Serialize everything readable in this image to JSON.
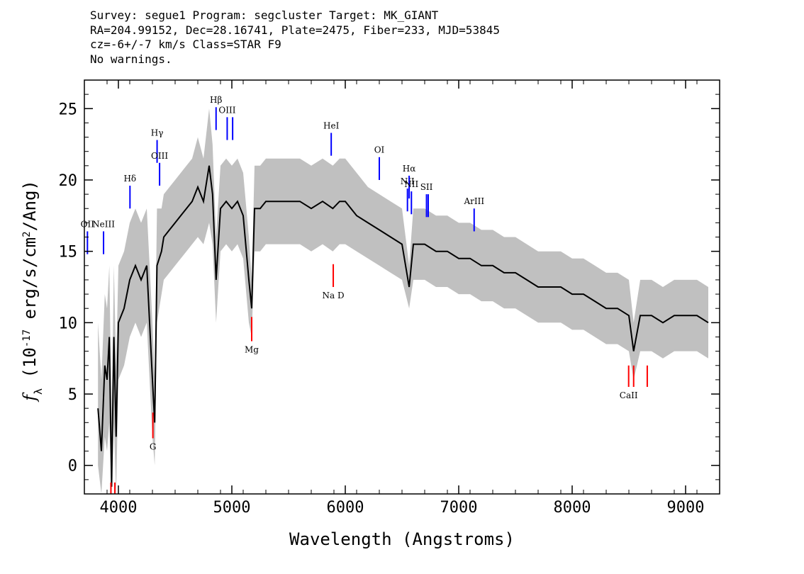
{
  "header": {
    "line1": "Survey: segue1 Program: segcluster Target: MK_GIANT",
    "line2": "RA=204.99152, Dec=28.16741, Plate=2475, Fiber=233, MJD=53845",
    "line3": "cz=-6+/-7 km/s Class=STAR F9",
    "line4": "No warnings."
  },
  "chart_data": {
    "type": "line",
    "title": "",
    "xlabel": "Wavelength (Angstroms)",
    "ylabel": "f_λ (10^-17 erg/s/cm^2/Ang)",
    "xlim": [
      3700,
      9300
    ],
    "ylim": [
      -2,
      27
    ],
    "xticks": [
      4000,
      5000,
      6000,
      7000,
      8000,
      9000
    ],
    "yticks": [
      0,
      5,
      10,
      15,
      20,
      25
    ],
    "grid": false,
    "series": [
      {
        "name": "",
        "color": "#000000",
        "x": [
          3820,
          3850,
          3880,
          3900,
          3920,
          3940,
          3960,
          3980,
          4000,
          4050,
          4100,
          4150,
          4200,
          4250,
          4300,
          4320,
          4340,
          4380,
          4400,
          4450,
          4500,
          4550,
          4600,
          4650,
          4700,
          4750,
          4800,
          4830,
          4861,
          4900,
          4950,
          5000,
          5050,
          5100,
          5150,
          5175,
          5200,
          5250,
          5300,
          5400,
          5500,
          5600,
          5700,
          5800,
          5890,
          5950,
          6000,
          6100,
          6200,
          6300,
          6400,
          6500,
          6563,
          6600,
          6700,
          6800,
          6900,
          7000,
          7100,
          7200,
          7300,
          7400,
          7500,
          7600,
          7700,
          7800,
          7900,
          8000,
          8100,
          8200,
          8300,
          8400,
          8500,
          8542,
          8600,
          8700,
          8800,
          8900,
          9000,
          9100,
          9200
        ],
        "values": [
          4,
          1,
          7,
          6,
          9,
          -1.5,
          9,
          2,
          10,
          11,
          13,
          14,
          13,
          14,
          6,
          3,
          14,
          15,
          16,
          16.5,
          17,
          17.5,
          18,
          18.5,
          19.5,
          18.5,
          21,
          19,
          13,
          18,
          18.5,
          18,
          18.5,
          17.5,
          13,
          11,
          18,
          18,
          18.5,
          18.5,
          18.5,
          18.5,
          18,
          18.5,
          18,
          18.5,
          18.5,
          17.5,
          17,
          16.5,
          16,
          15.5,
          12.5,
          15.5,
          15.5,
          15,
          15,
          14.5,
          14.5,
          14,
          14,
          13.5,
          13.5,
          13,
          12.5,
          12.5,
          12.5,
          12,
          12,
          11.5,
          11,
          11,
          10.5,
          8,
          10.5,
          10.5,
          10,
          10.5,
          10.5,
          10.5,
          10
        ]
      }
    ],
    "error_band": {
      "color": "#c0c0c0",
      "lower": [
        0,
        -2,
        2,
        1,
        3,
        -2,
        3,
        -2,
        6,
        7,
        9,
        10,
        9,
        10,
        2,
        0,
        10,
        12,
        13,
        13.5,
        14,
        14.5,
        15,
        15.5,
        16,
        15.5,
        17,
        15.5,
        10,
        15,
        15.5,
        15,
        15.5,
        14.5,
        10,
        9,
        15,
        15,
        15.5,
        15.5,
        15.5,
        15.5,
        15,
        15.5,
        15,
        15.5,
        15.5,
        15,
        14.5,
        14,
        13.5,
        13,
        11,
        13,
        13,
        12.5,
        12.5,
        12,
        12,
        11.5,
        11.5,
        11,
        11,
        10.5,
        10,
        10,
        10,
        9.5,
        9.5,
        9,
        8.5,
        8.5,
        8,
        6,
        8,
        8,
        7.5,
        8,
        8,
        8,
        7.5
      ],
      "upper": [
        10,
        6,
        12,
        11,
        14,
        3,
        14,
        7,
        14,
        15,
        17,
        18,
        17,
        18,
        10,
        6,
        18,
        18,
        19,
        19.5,
        20,
        20.5,
        21,
        21.5,
        23,
        21.5,
        25,
        22.5,
        16,
        21,
        21.5,
        21,
        21.5,
        20.5,
        16,
        13,
        21,
        21,
        21.5,
        21.5,
        21.5,
        21.5,
        21,
        21.5,
        21,
        21.5,
        21.5,
        20.5,
        19.5,
        19,
        18.5,
        18,
        14,
        18,
        18,
        17.5,
        17.5,
        17,
        17,
        16.5,
        16.5,
        16,
        16,
        15.5,
        15,
        15,
        15,
        14.5,
        14.5,
        14,
        13.5,
        13.5,
        13,
        10,
        13,
        13,
        12.5,
        13,
        13,
        13,
        12.5
      ]
    },
    "emission_lines": [
      {
        "label": "OII",
        "x": 3727,
        "y1": 14.8,
        "y2": 16.4,
        "label_y": 16.7,
        "color": "#0000ff"
      },
      {
        "label": "NeIII",
        "x": 3869,
        "y1": 14.8,
        "y2": 16.4,
        "label_y": 16.7,
        "color": "#0000ff"
      },
      {
        "label": "Hδ",
        "x": 4102,
        "y1": 18.0,
        "y2": 19.6,
        "label_y": 19.9,
        "color": "#0000ff"
      },
      {
        "label": "Hγ",
        "x": 4341,
        "y1": 21.2,
        "y2": 22.8,
        "label_y": 23.1,
        "color": "#0000ff"
      },
      {
        "label": "OIII",
        "x": 4363,
        "y1": 19.6,
        "y2": 21.2,
        "label_y": 21.5,
        "color": "#0000ff"
      },
      {
        "label": "Hβ",
        "x": 4861,
        "y1": 23.5,
        "y2": 25.1,
        "label_y": 25.4,
        "color": "#0000ff"
      },
      {
        "label": "OIII",
        "x": 4959,
        "y1": 22.8,
        "y2": 24.4,
        "label_y": 24.7,
        "color": "#0000ff"
      },
      {
        "label": "",
        "x": 5007,
        "y1": 22.8,
        "y2": 24.4,
        "label_y": 24.7,
        "color": "#0000ff"
      },
      {
        "label": "HeI",
        "x": 5876,
        "y1": 21.7,
        "y2": 23.3,
        "label_y": 23.6,
        "color": "#0000ff"
      },
      {
        "label": "OI",
        "x": 6300,
        "y1": 20.0,
        "y2": 21.6,
        "label_y": 21.9,
        "color": "#0000ff"
      },
      {
        "label": "NII",
        "x": 6548,
        "y1": 17.8,
        "y2": 19.4,
        "label_y": 19.7,
        "color": "#0000ff"
      },
      {
        "label": "Hα",
        "x": 6563,
        "y1": 18.7,
        "y2": 20.3,
        "label_y": 20.6,
        "color": "#0000ff"
      },
      {
        "label": "NII",
        "x": 6583,
        "y1": 17.6,
        "y2": 19.2,
        "label_y": 19.5,
        "color": "#0000ff"
      },
      {
        "label": "SII",
        "x": 6716,
        "y1": 17.4,
        "y2": 19.0,
        "label_y": 19.3,
        "color": "#0000ff"
      },
      {
        "label": "",
        "x": 6731,
        "y1": 17.4,
        "y2": 19.0,
        "label_y": 19.3,
        "color": "#0000ff"
      },
      {
        "label": "ArIII",
        "x": 7136,
        "y1": 16.4,
        "y2": 18.0,
        "label_y": 18.3,
        "color": "#0000ff"
      }
    ],
    "absorption_lines": [
      {
        "label": "G",
        "x": 4304,
        "y1": 3.7,
        "y2": 1.9,
        "label_y": 1.1,
        "color": "#ff0000"
      },
      {
        "label": "Mg",
        "x": 5175,
        "y1": 10.4,
        "y2": 8.7,
        "label_y": 7.9,
        "color": "#ff0000"
      },
      {
        "label": "Na D",
        "x": 5894,
        "y1": 14.1,
        "y2": 12.5,
        "label_y": 11.7,
        "color": "#ff0000"
      },
      {
        "label": "CaII",
        "x": 8498,
        "y1": 7.0,
        "y2": 5.5,
        "label_y": 4.7,
        "color": "#ff0000"
      },
      {
        "label": "",
        "x": 8542,
        "y1": 7.0,
        "y2": 5.5,
        "label_y": 4.7,
        "color": "#ff0000"
      },
      {
        "label": "",
        "x": 8662,
        "y1": 7.0,
        "y2": 5.5,
        "label_y": 4.7,
        "color": "#ff0000"
      },
      {
        "label": "",
        "x": 3934,
        "y1": -1.2,
        "y2": -2.0,
        "label_y": -3,
        "color": "#ff0000"
      },
      {
        "label": "",
        "x": 3969,
        "y1": -1.2,
        "y2": -2.0,
        "label_y": -3,
        "color": "#ff0000"
      }
    ]
  }
}
